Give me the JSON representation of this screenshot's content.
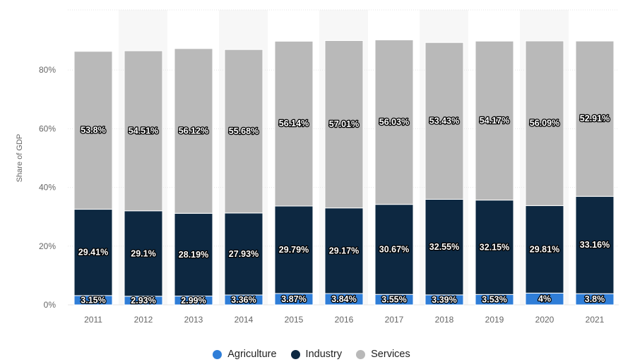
{
  "chart_data": {
    "type": "bar",
    "stacked": true,
    "categories": [
      "2011",
      "2012",
      "2013",
      "2014",
      "2015",
      "2016",
      "2017",
      "2018",
      "2019",
      "2020",
      "2021"
    ],
    "series": [
      {
        "name": "Agriculture",
        "color": "#2f7ed8",
        "values": [
          3.15,
          2.93,
          2.99,
          3.36,
          3.87,
          3.84,
          3.55,
          3.39,
          3.53,
          4,
          3.8
        ],
        "labels": [
          "3.15%",
          "2.93%",
          "2.99%",
          "3.36%",
          "3.87%",
          "3.84%",
          "3.55%",
          "3.39%",
          "3.53%",
          "4%",
          "3.8%"
        ]
      },
      {
        "name": "Industry",
        "color": "#0d2841",
        "values": [
          29.41,
          29.1,
          28.19,
          27.93,
          29.79,
          29.17,
          30.67,
          32.55,
          32.15,
          29.81,
          33.16
        ],
        "labels": [
          "29.41%",
          "29.1%",
          "28.19%",
          "27.93%",
          "29.79%",
          "29.17%",
          "30.67%",
          "32.55%",
          "32.15%",
          "29.81%",
          "33.16%"
        ]
      },
      {
        "name": "Services",
        "color": "#b9b9b9",
        "values": [
          53.8,
          54.51,
          56.12,
          55.68,
          56.14,
          57.01,
          56.03,
          53.43,
          54.17,
          56.09,
          52.91
        ],
        "labels": [
          "53.8%",
          "54.51%",
          "56.12%",
          "55.68%",
          "56.14%",
          "57.01%",
          "56.03%",
          "53.43%",
          "54.17%",
          "56.09%",
          "52.91%"
        ]
      }
    ],
    "ylabel": "Share of GDP",
    "yticks": [
      "0%",
      "20%",
      "40%",
      "60%",
      "80%"
    ],
    "ytick_values": [
      0,
      20,
      40,
      60,
      80
    ],
    "ylim": [
      0,
      100
    ],
    "grid": true,
    "legend_position": "bottom"
  }
}
